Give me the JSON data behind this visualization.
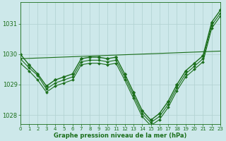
{
  "bg_color": "#cde8ea",
  "grid_color": "#b0d0d0",
  "line_color": "#1a6e1a",
  "xlabel": "Graphe pression niveau de la mer (hPa)",
  "xlim": [
    0,
    23
  ],
  "ylim": [
    1027.7,
    1031.7
  ],
  "yticks": [
    1028,
    1029,
    1030,
    1031
  ],
  "xticks": [
    0,
    1,
    2,
    3,
    4,
    5,
    6,
    7,
    8,
    9,
    10,
    11,
    12,
    13,
    14,
    15,
    16,
    17,
    18,
    19,
    20,
    21,
    22,
    23
  ],
  "series": [
    {
      "x": [
        0,
        1,
        2,
        3,
        4,
        5,
        6,
        7,
        8,
        9,
        10,
        11,
        12,
        13,
        14,
        15,
        16,
        17,
        18,
        19,
        20,
        21,
        22,
        23
      ],
      "y": [
        1030.0,
        1029.65,
        1029.35,
        1028.95,
        1029.15,
        1029.25,
        1029.35,
        1029.85,
        1029.9,
        1029.9,
        1029.85,
        1029.9,
        1029.35,
        1028.75,
        1028.15,
        1027.83,
        1028.05,
        1028.45,
        1029.0,
        1029.45,
        1029.7,
        1029.95,
        1031.05,
        1031.45
      ],
      "marker": "D",
      "markersize": 2.5,
      "linewidth": 1.0
    },
    {
      "x": [
        0,
        1,
        2,
        3,
        4,
        5,
        6,
        7,
        8,
        9,
        10,
        11,
        12,
        13,
        14,
        15,
        16,
        17,
        18,
        19,
        20,
        21,
        22,
        23
      ],
      "y": [
        1029.85,
        1029.55,
        1029.3,
        1028.85,
        1029.05,
        1029.15,
        1029.25,
        1029.75,
        1029.8,
        1029.8,
        1029.75,
        1029.8,
        1029.25,
        1028.65,
        1028.05,
        1027.75,
        1027.95,
        1028.35,
        1028.9,
        1029.35,
        1029.6,
        1029.85,
        1030.95,
        1031.35
      ],
      "marker": "D",
      "markersize": 2.0,
      "linewidth": 0.8
    },
    {
      "x": [
        0,
        1,
        2,
        3,
        4,
        5,
        6,
        7,
        8,
        9,
        10,
        11,
        12,
        13,
        14,
        15,
        16,
        17,
        18,
        19,
        20,
        21,
        22,
        23
      ],
      "y": [
        1029.7,
        1029.45,
        1029.15,
        1028.75,
        1028.95,
        1029.05,
        1029.15,
        1029.65,
        1029.7,
        1029.7,
        1029.65,
        1029.7,
        1029.15,
        1028.55,
        1027.95,
        1027.65,
        1027.85,
        1028.25,
        1028.8,
        1029.25,
        1029.5,
        1029.75,
        1030.85,
        1031.25
      ],
      "marker": "D",
      "markersize": 2.0,
      "linewidth": 0.8
    },
    {
      "x": [
        0,
        23
      ],
      "y": [
        1029.85,
        1030.1
      ],
      "marker": null,
      "markersize": 0,
      "linewidth": 0.8
    }
  ]
}
